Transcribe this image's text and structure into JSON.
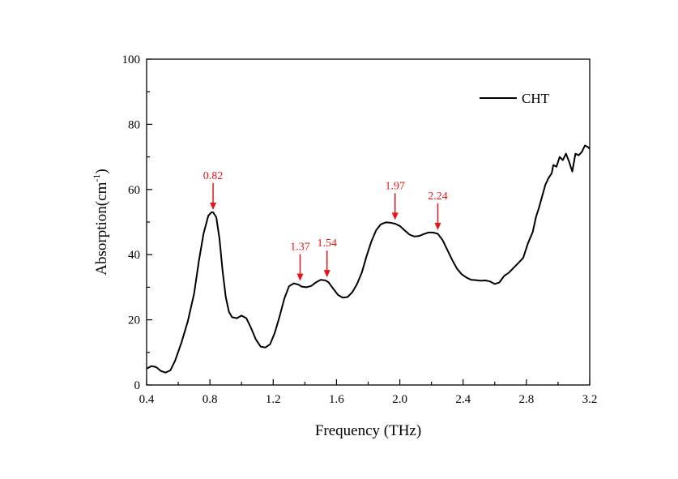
{
  "chart_data": {
    "type": "line",
    "title": "",
    "xlabel": "Frequency (THz)",
    "ylabel": "Absorption(cm",
    "ylabel_sup": "-1",
    "ylabel_close": ")",
    "xlim": [
      0.4,
      3.2
    ],
    "ylim": [
      0,
      100
    ],
    "x_ticks": [
      "0.4",
      "0.8",
      "1.2",
      "1.6",
      "2.0",
      "2.4",
      "2.8",
      "3.2"
    ],
    "y_ticks": [
      "0",
      "20",
      "40",
      "60",
      "80",
      "100"
    ],
    "grid": false,
    "legend_position": "top-right",
    "colors": {
      "line": "#000000",
      "annotation": "#e8141a"
    },
    "series": [
      {
        "name": "CHT",
        "x": [
          0.4,
          0.43,
          0.46,
          0.49,
          0.52,
          0.55,
          0.58,
          0.62,
          0.66,
          0.7,
          0.73,
          0.76,
          0.79,
          0.81,
          0.82,
          0.84,
          0.86,
          0.88,
          0.9,
          0.92,
          0.94,
          0.97,
          1.0,
          1.03,
          1.06,
          1.09,
          1.12,
          1.15,
          1.18,
          1.21,
          1.24,
          1.27,
          1.3,
          1.33,
          1.36,
          1.38,
          1.41,
          1.44,
          1.47,
          1.5,
          1.53,
          1.55,
          1.58,
          1.61,
          1.64,
          1.67,
          1.7,
          1.73,
          1.76,
          1.79,
          1.82,
          1.85,
          1.88,
          1.91,
          1.94,
          1.97,
          2.0,
          2.03,
          2.06,
          2.09,
          2.12,
          2.15,
          2.18,
          2.21,
          2.24,
          2.27,
          2.3,
          2.33,
          2.36,
          2.39,
          2.42,
          2.45,
          2.48,
          2.51,
          2.54,
          2.57,
          2.6,
          2.63,
          2.66,
          2.69,
          2.72,
          2.75,
          2.78,
          2.81,
          2.84,
          2.86,
          2.88,
          2.9,
          2.92,
          2.94,
          2.96,
          2.97,
          2.99,
          3.01,
          3.03,
          3.05,
          3.07,
          3.09,
          3.11,
          3.13,
          3.15,
          3.17,
          3.19,
          3.2
        ],
        "y": [
          5.0,
          5.8,
          5.5,
          4.3,
          3.8,
          4.5,
          7.5,
          13.0,
          19.5,
          28.0,
          38.0,
          46.5,
          52.0,
          53.0,
          53.0,
          51.5,
          45.0,
          35.0,
          27.0,
          22.5,
          20.8,
          20.5,
          21.3,
          20.5,
          17.5,
          14.0,
          11.8,
          11.5,
          12.5,
          16.0,
          21.0,
          26.5,
          30.3,
          31.2,
          30.8,
          30.2,
          30.0,
          30.4,
          31.5,
          32.3,
          32.1,
          31.5,
          29.5,
          27.6,
          26.8,
          27.0,
          28.5,
          31.0,
          34.5,
          39.5,
          44.0,
          47.5,
          49.3,
          49.9,
          49.8,
          49.5,
          48.8,
          47.5,
          46.2,
          45.6,
          45.7,
          46.3,
          46.8,
          46.8,
          46.4,
          44.5,
          41.5,
          38.5,
          35.8,
          34.0,
          33.0,
          32.3,
          32.2,
          32.0,
          32.1,
          31.8,
          31.0,
          31.5,
          33.5,
          34.5,
          36.0,
          37.5,
          39.0,
          43.5,
          47.0,
          51.5,
          54.5,
          58.0,
          61.5,
          63.5,
          65.0,
          67.5,
          67.0,
          70.0,
          69.0,
          71.0,
          68.5,
          65.5,
          71.0,
          70.5,
          71.5,
          73.5,
          73.0,
          72.5
        ]
      }
    ],
    "annotations": [
      {
        "label": "0.82",
        "x": 0.82,
        "y": 53.0
      },
      {
        "label": "1.37",
        "x": 1.37,
        "y": 31.2
      },
      {
        "label": "1.54",
        "x": 1.54,
        "y": 32.3
      },
      {
        "label": "1.97",
        "x": 1.97,
        "y": 49.9
      },
      {
        "label": "2.24",
        "x": 2.24,
        "y": 46.8
      }
    ]
  }
}
